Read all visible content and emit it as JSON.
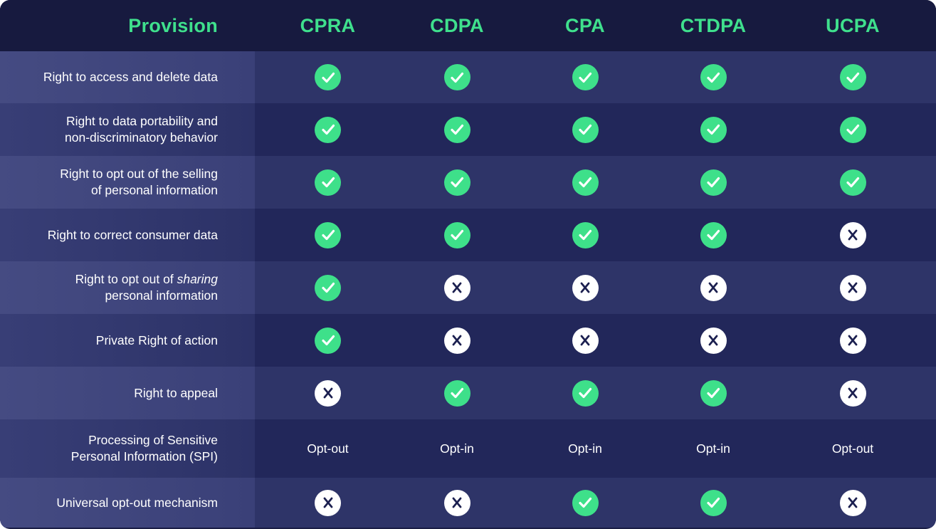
{
  "header": {
    "provision": "Provision",
    "columns": [
      "CPRA",
      "CDPA",
      "CPA",
      "CTDPA",
      "UCPA"
    ]
  },
  "rows": [
    {
      "label_lines": [
        "Right to access and delete data"
      ],
      "values": [
        "check",
        "check",
        "check",
        "check",
        "check"
      ]
    },
    {
      "label_lines": [
        "Right to data portability and",
        "non-discriminatory behavior"
      ],
      "values": [
        "check",
        "check",
        "check",
        "check",
        "check"
      ]
    },
    {
      "label_lines": [
        "Right to opt out of the selling",
        "of personal information"
      ],
      "values": [
        "check",
        "check",
        "check",
        "check",
        "check"
      ]
    },
    {
      "label_lines": [
        "Right to correct consumer data"
      ],
      "values": [
        "check",
        "check",
        "check",
        "check",
        "cross"
      ]
    },
    {
      "label_lines": [
        "Right to opt out of ",
        "personal information"
      ],
      "label_em": "sharing",
      "values": [
        "check",
        "cross",
        "cross",
        "cross",
        "cross"
      ]
    },
    {
      "label_lines": [
        "Private Right of action"
      ],
      "values": [
        "check",
        "cross",
        "cross",
        "cross",
        "cross"
      ]
    },
    {
      "label_lines": [
        "Right to appeal"
      ],
      "values": [
        "cross",
        "check",
        "check",
        "check",
        "cross"
      ]
    },
    {
      "label_lines": [
        "Processing of Sensitive",
        "Personal Information (SPI)"
      ],
      "values": [
        "Opt-out",
        "Opt-in",
        "Opt-in",
        "Opt-in",
        "Opt-out"
      ]
    },
    {
      "label_lines": [
        "Universal opt-out mechanism"
      ],
      "values": [
        "cross",
        "cross",
        "check",
        "check",
        "cross"
      ]
    }
  ],
  "icons": {
    "check": "checkmark-circle-icon",
    "cross": "x-circle-icon"
  },
  "colors": {
    "accent_green": "#3ee08a",
    "header_bg": "#171a3f",
    "row_bg_light": "#2e3468",
    "row_bg_dark": "#22275a",
    "cross_bg": "#ffffff",
    "cross_fg": "#1c2050"
  }
}
